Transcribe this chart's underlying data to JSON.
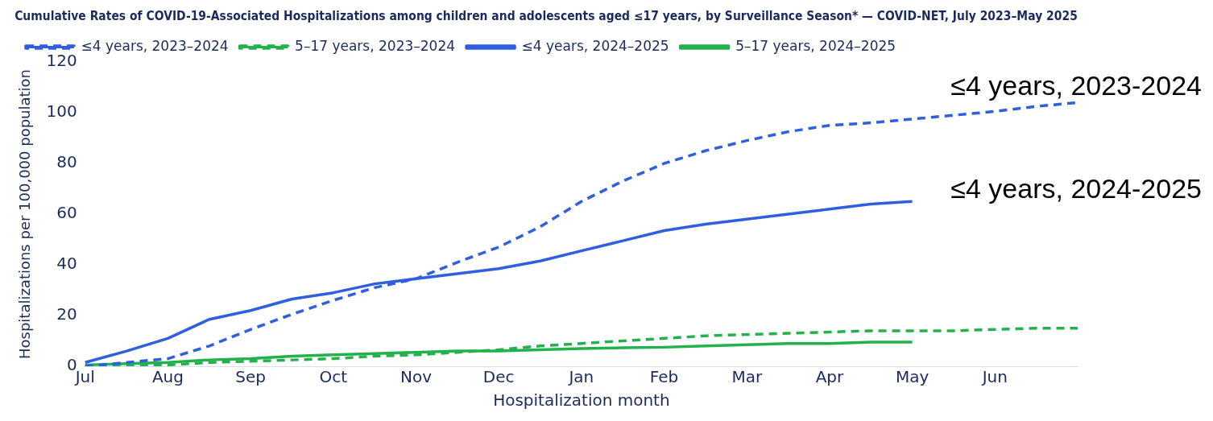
{
  "chart_data": {
    "type": "line",
    "title": "Cumulative Rates of COVID-19-Associated Hospitalizations among children and adolescents aged ≤17 years, by Surveillance Season* — COVID-NET, July 2023–May 2025",
    "xlabel": "Hospitalization month",
    "ylabel": "Hospitalizations per 100,000 population",
    "categories": [
      "Jul",
      null,
      "Aug",
      null,
      "Sep",
      null,
      "Oct",
      null,
      "Nov",
      null,
      "Dec",
      null,
      "Jan",
      null,
      "Feb",
      null,
      "Mar",
      null,
      "Apr",
      null,
      "May",
      null,
      "Jun",
      null,
      null
    ],
    "ylim": [
      0,
      120
    ],
    "yticks": [
      0,
      20,
      40,
      60,
      80,
      100,
      120
    ],
    "grid": false,
    "legend": "top left",
    "marker": "none",
    "series": [
      {
        "name": "≤4 years, 2023–2024",
        "color": "#2f5fe0",
        "line_style": "dashed",
        "values": [
          0,
          1.5,
          3,
          8,
          14.5,
          20.5,
          26,
          31,
          34.5,
          41,
          47,
          55,
          65,
          73,
          80,
          85,
          89,
          92.5,
          95,
          96,
          97.5,
          99,
          100.5,
          102.5,
          104
        ]
      },
      {
        "name": "5–17 years, 2023–2024",
        "color": "#22b14c",
        "line_style": "dashed",
        "values": [
          0,
          0.3,
          0.5,
          1.5,
          2,
          2.5,
          3,
          4,
          4.5,
          5.5,
          6.5,
          8,
          9,
          10,
          11,
          12,
          12.5,
          13,
          13.5,
          14,
          14,
          14,
          14.5,
          15,
          15
        ]
      },
      {
        "name": "≤4 years, 2024–2025",
        "color": "#2f5fe0",
        "line_style": "solid",
        "values": [
          1.5,
          6,
          11,
          18.5,
          22,
          26.5,
          29,
          32.5,
          34.5,
          36.5,
          38.5,
          41.5,
          45.5,
          49.5,
          53.5,
          56,
          58,
          60,
          62,
          64,
          65,
          null,
          null,
          null,
          null
        ]
      },
      {
        "name": "5–17 years, 2024–2025",
        "color": "#22b14c",
        "line_style": "solid",
        "values": [
          0.5,
          1,
          1.5,
          2.5,
          3,
          4,
          4.5,
          5,
          5.5,
          6,
          6,
          6.5,
          7,
          7.3,
          7.5,
          8,
          8.5,
          9,
          9,
          9.5,
          9.5,
          null,
          null,
          null,
          null
        ]
      }
    ],
    "annotations": [
      "≤4 years, 2023-2024",
      "≤4 years, 2024-2025"
    ]
  }
}
